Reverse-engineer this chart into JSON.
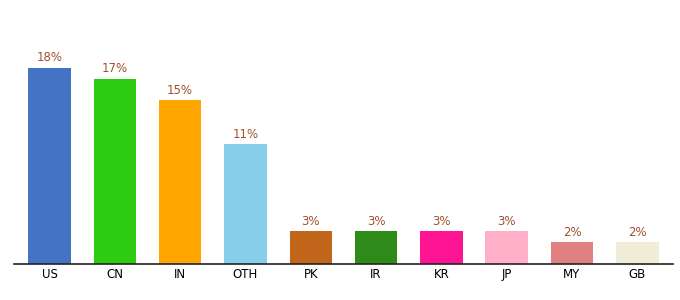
{
  "categories": [
    "US",
    "CN",
    "IN",
    "OTH",
    "PK",
    "IR",
    "KR",
    "JP",
    "MY",
    "GB"
  ],
  "values": [
    18,
    17,
    15,
    11,
    3,
    3,
    3,
    3,
    2,
    2
  ],
  "bar_colors": [
    "#4472C4",
    "#2ECC11",
    "#FFA500",
    "#87CEEB",
    "#C0651A",
    "#2E8B1A",
    "#FF1493",
    "#FFB0C8",
    "#E08080",
    "#F0EDD8"
  ],
  "label_color": "#A0522D",
  "background_color": "#ffffff",
  "ylim": [
    0,
    22
  ],
  "bar_width": 0.65,
  "label_fontsize": 8.5,
  "tick_fontsize": 8.5
}
